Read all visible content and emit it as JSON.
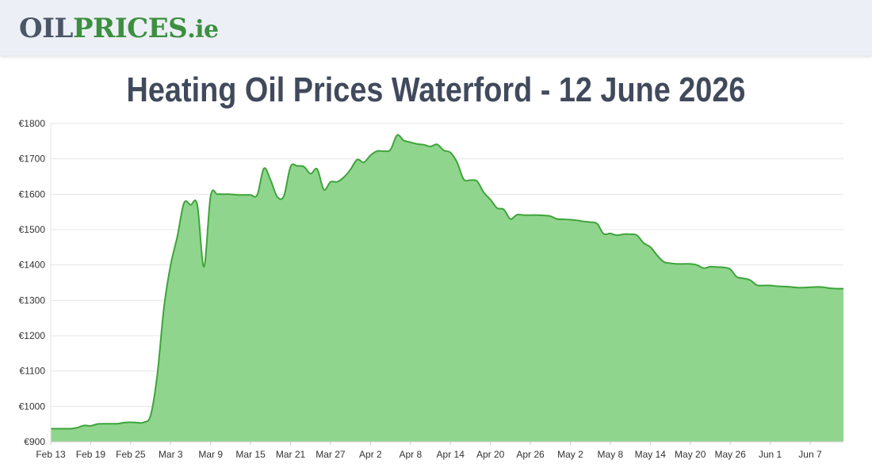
{
  "header": {
    "logo_oil": "OIL",
    "logo_prices": "PRICES",
    "logo_ie": ".ie"
  },
  "page_title": "Heating Oil Prices Waterford - 12 June 2026",
  "colors": {
    "line": "#3ea43b",
    "fill": "#90d58d",
    "grid": "#e6e6e6",
    "header_bg": "#eceff6",
    "title": "#414a5c"
  },
  "chart_data": {
    "type": "area",
    "title": "",
    "xlabel": "",
    "ylabel": "",
    "ylim": [
      900,
      1800
    ],
    "yticks": [
      900,
      1000,
      1100,
      1200,
      1300,
      1400,
      1500,
      1600,
      1700,
      1800
    ],
    "ytick_labels": [
      "€900",
      "€1000",
      "€1100",
      "€1200",
      "€1300",
      "€1400",
      "€1500",
      "€1600",
      "€1700",
      "€1800"
    ],
    "xlim": [
      "2026-02-13",
      "2026-06-12"
    ],
    "xticks": [
      "2026-02-13",
      "2026-02-19",
      "2026-02-25",
      "2026-03-03",
      "2026-03-09",
      "2026-03-15",
      "2026-03-21",
      "2026-03-27",
      "2026-04-02",
      "2026-04-08",
      "2026-04-14",
      "2026-04-20",
      "2026-04-26",
      "2026-05-02",
      "2026-05-08",
      "2026-05-14",
      "2026-05-20",
      "2026-05-26",
      "2026-06-01",
      "2026-06-07"
    ],
    "xtick_labels": [
      "Feb 13",
      "Feb 19",
      "Feb 25",
      "Mar 3",
      "Mar 9",
      "Mar 15",
      "Mar 21",
      "Mar 27",
      "Apr 2",
      "Apr 8",
      "Apr 14",
      "Apr 20",
      "Apr 26",
      "May 2",
      "May 8",
      "May 14",
      "May 20",
      "May 26",
      "Jun 1",
      "Jun 7"
    ],
    "grid": true,
    "legend": "none",
    "series": [
      {
        "points": [
          [
            "2026-02-13",
            937
          ],
          [
            "2026-02-14",
            937
          ],
          [
            "2026-02-15",
            937
          ],
          [
            "2026-02-16",
            937
          ],
          [
            "2026-02-17",
            940
          ],
          [
            "2026-02-18",
            946
          ],
          [
            "2026-02-19",
            945
          ],
          [
            "2026-02-20",
            950
          ],
          [
            "2026-02-21",
            951
          ],
          [
            "2026-02-22",
            951
          ],
          [
            "2026-02-23",
            951
          ],
          [
            "2026-02-24",
            954
          ],
          [
            "2026-02-25",
            955
          ],
          [
            "2026-02-26",
            954
          ],
          [
            "2026-02-27",
            955
          ],
          [
            "2026-02-28",
            975
          ],
          [
            "2026-03-01",
            1090
          ],
          [
            "2026-03-02",
            1280
          ],
          [
            "2026-03-03",
            1400
          ],
          [
            "2026-03-04",
            1480
          ],
          [
            "2026-03-05",
            1575
          ],
          [
            "2026-03-06",
            1570
          ],
          [
            "2026-03-07",
            1570
          ],
          [
            "2026-03-08",
            1395
          ],
          [
            "2026-03-09",
            1595
          ],
          [
            "2026-03-10",
            1600
          ],
          [
            "2026-03-11",
            1600
          ],
          [
            "2026-03-12",
            1600
          ],
          [
            "2026-03-13",
            1598
          ],
          [
            "2026-03-14",
            1598
          ],
          [
            "2026-03-15",
            1598
          ],
          [
            "2026-03-16",
            1598
          ],
          [
            "2026-03-17",
            1673
          ],
          [
            "2026-03-18",
            1640
          ],
          [
            "2026-03-19",
            1593
          ],
          [
            "2026-03-20",
            1595
          ],
          [
            "2026-03-21",
            1678
          ],
          [
            "2026-03-22",
            1680
          ],
          [
            "2026-03-23",
            1678
          ],
          [
            "2026-03-24",
            1658
          ],
          [
            "2026-03-25",
            1671
          ],
          [
            "2026-03-26",
            1613
          ],
          [
            "2026-03-27",
            1635
          ],
          [
            "2026-03-28",
            1635
          ],
          [
            "2026-03-29",
            1648
          ],
          [
            "2026-03-30",
            1670
          ],
          [
            "2026-03-31",
            1698
          ],
          [
            "2026-04-01",
            1690
          ],
          [
            "2026-04-02",
            1710
          ],
          [
            "2026-04-03",
            1722
          ],
          [
            "2026-04-04",
            1722
          ],
          [
            "2026-04-05",
            1726
          ],
          [
            "2026-04-06",
            1767
          ],
          [
            "2026-04-07",
            1752
          ],
          [
            "2026-04-08",
            1747
          ],
          [
            "2026-04-09",
            1742
          ],
          [
            "2026-04-10",
            1740
          ],
          [
            "2026-04-11",
            1735
          ],
          [
            "2026-04-12",
            1741
          ],
          [
            "2026-04-13",
            1724
          ],
          [
            "2026-04-14",
            1718
          ],
          [
            "2026-04-15",
            1690
          ],
          [
            "2026-04-16",
            1642
          ],
          [
            "2026-04-17",
            1640
          ],
          [
            "2026-04-18",
            1637
          ],
          [
            "2026-04-19",
            1605
          ],
          [
            "2026-04-20",
            1585
          ],
          [
            "2026-04-21",
            1561
          ],
          [
            "2026-04-22",
            1557
          ],
          [
            "2026-04-23",
            1530
          ],
          [
            "2026-04-24",
            1542
          ],
          [
            "2026-04-25",
            1541
          ],
          [
            "2026-04-26",
            1541
          ],
          [
            "2026-04-27",
            1541
          ],
          [
            "2026-04-28",
            1540
          ],
          [
            "2026-04-29",
            1538
          ],
          [
            "2026-04-30",
            1530
          ],
          [
            "2026-05-01",
            1529
          ],
          [
            "2026-05-02",
            1528
          ],
          [
            "2026-05-03",
            1526
          ],
          [
            "2026-05-04",
            1523
          ],
          [
            "2026-05-05",
            1521
          ],
          [
            "2026-05-06",
            1517
          ],
          [
            "2026-05-07",
            1488
          ],
          [
            "2026-05-08",
            1489
          ],
          [
            "2026-05-09",
            1484
          ],
          [
            "2026-05-10",
            1487
          ],
          [
            "2026-05-11",
            1487
          ],
          [
            "2026-05-12",
            1484
          ],
          [
            "2026-05-13",
            1462
          ],
          [
            "2026-05-14",
            1451
          ],
          [
            "2026-05-15",
            1428
          ],
          [
            "2026-05-16",
            1409
          ],
          [
            "2026-05-17",
            1405
          ],
          [
            "2026-05-18",
            1403
          ],
          [
            "2026-05-19",
            1403
          ],
          [
            "2026-05-20",
            1403
          ],
          [
            "2026-05-21",
            1400
          ],
          [
            "2026-05-22",
            1391
          ],
          [
            "2026-05-23",
            1395
          ],
          [
            "2026-05-24",
            1394
          ],
          [
            "2026-05-25",
            1393
          ],
          [
            "2026-05-26",
            1388
          ],
          [
            "2026-05-27",
            1366
          ],
          [
            "2026-05-28",
            1362
          ],
          [
            "2026-05-29",
            1357
          ],
          [
            "2026-05-30",
            1343
          ],
          [
            "2026-05-31",
            1342
          ],
          [
            "2026-06-01",
            1342
          ],
          [
            "2026-06-02",
            1340
          ],
          [
            "2026-06-03",
            1339
          ],
          [
            "2026-06-04",
            1338
          ],
          [
            "2026-06-05",
            1336
          ],
          [
            "2026-06-06",
            1336
          ],
          [
            "2026-06-07",
            1337
          ],
          [
            "2026-06-08",
            1338
          ],
          [
            "2026-06-09",
            1337
          ],
          [
            "2026-06-10",
            1334
          ],
          [
            "2026-06-11",
            1333
          ],
          [
            "2026-06-12",
            1333
          ]
        ]
      }
    ]
  }
}
